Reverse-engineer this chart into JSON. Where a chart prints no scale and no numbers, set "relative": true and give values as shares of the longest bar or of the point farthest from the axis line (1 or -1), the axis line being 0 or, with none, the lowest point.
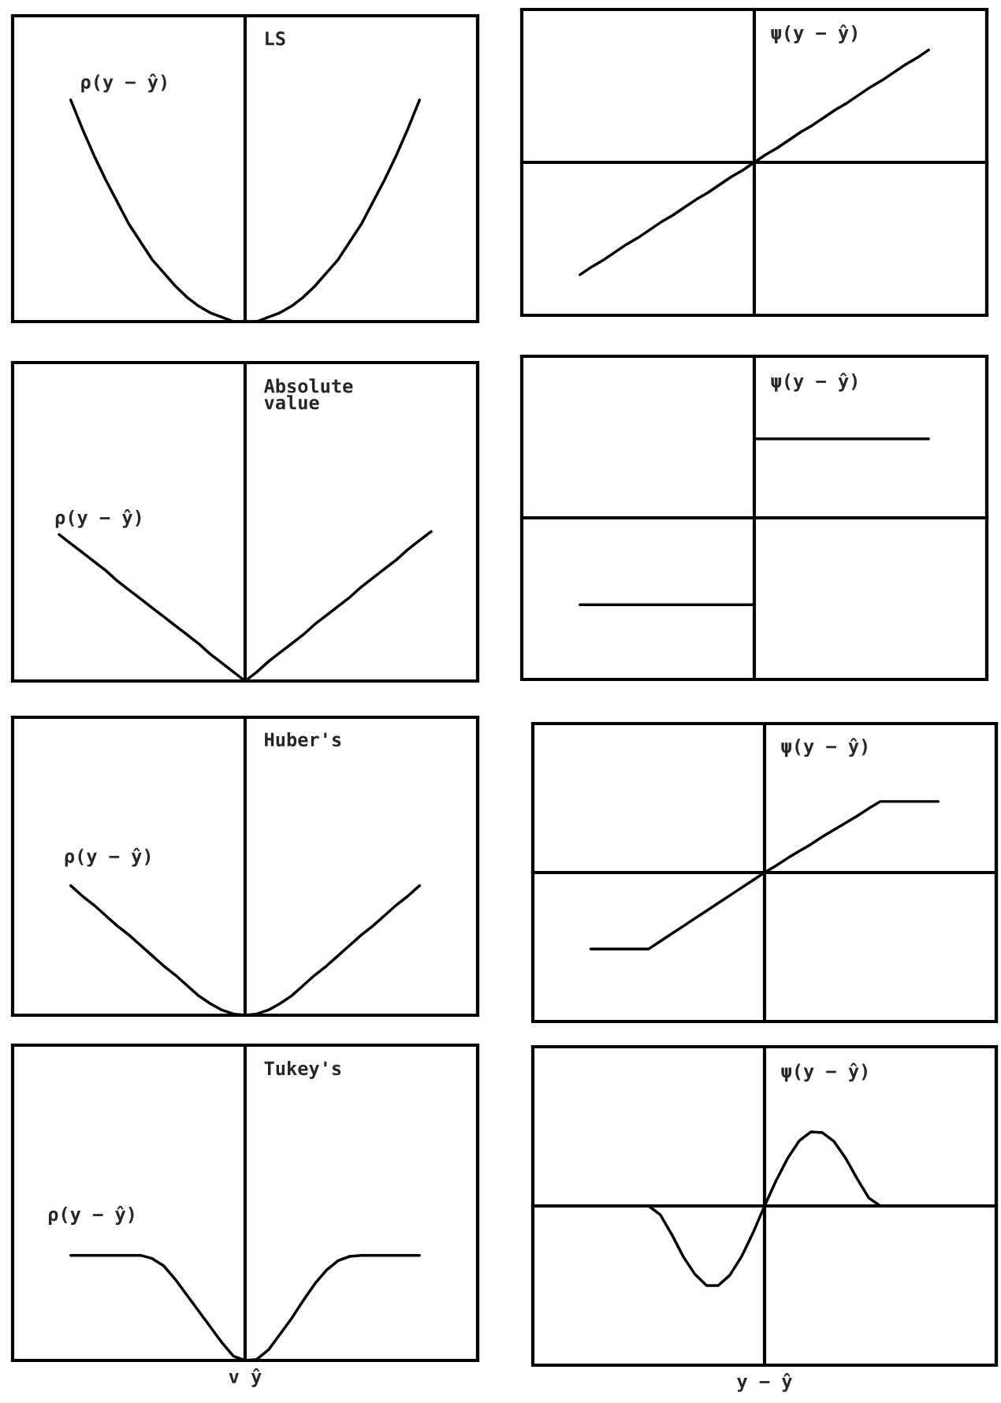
{
  "chart_data": [
    {
      "type": "line",
      "title": "LS",
      "ylabel": "ρ(y − ŷ)",
      "relative": true,
      "color": "#000000",
      "categories": [
        null,
        null,
        null,
        null,
        null,
        null,
        null,
        null,
        null,
        null,
        null,
        null,
        null,
        null,
        null,
        null,
        null,
        null,
        null,
        null,
        null,
        null,
        null,
        null,
        null,
        null,
        null,
        null,
        null,
        null,
        null,
        null,
        null,
        null,
        null,
        null,
        null,
        null,
        null,
        null,
        null
      ],
      "values": [
        null,
        null,
        null,
        null,
        null,
        1,
        0.87,
        0.75,
        0.64,
        0.54,
        0.44,
        0.36,
        0.28,
        0.22,
        0.16,
        0.11,
        0.07,
        0.04,
        0.02,
        0,
        0,
        0,
        0.02,
        0.04,
        0.07,
        0.11,
        0.16,
        0.22,
        0.28,
        0.36,
        0.44,
        0.54,
        0.64,
        0.75,
        0.87,
        1,
        null,
        null,
        null,
        null,
        null
      ]
    },
    {
      "type": "line",
      "ylabel": "ψ(y − ŷ)",
      "relative": true,
      "color": "#000000",
      "categories": [
        null,
        null,
        null,
        null,
        null,
        null,
        null,
        null,
        null,
        null,
        null,
        null,
        null,
        null,
        null,
        null,
        null,
        null,
        null,
        null,
        null,
        null,
        null,
        null,
        null,
        null,
        null,
        null,
        null,
        null,
        null,
        null,
        null,
        null,
        null,
        null,
        null,
        null,
        null,
        null,
        null
      ],
      "values": [
        null,
        null,
        null,
        null,
        null,
        -1,
        -0.93,
        -0.87,
        -0.8,
        -0.73,
        -0.67,
        -0.6,
        -0.53,
        -0.47,
        -0.4,
        -0.33,
        -0.27,
        -0.2,
        -0.13,
        -0.07,
        0,
        0.07,
        0.13,
        0.2,
        0.27,
        0.33,
        0.4,
        0.47,
        0.53,
        0.6,
        0.67,
        0.73,
        0.8,
        0.87,
        0.93,
        1,
        null,
        null,
        null,
        null,
        null
      ]
    },
    {
      "type": "line",
      "title": "Absolute\nvalue",
      "ylabel": "ρ(y − ŷ)",
      "relative": true,
      "color": "#000000",
      "categories": [
        null,
        null,
        null,
        null,
        null,
        null,
        null,
        null,
        null,
        null,
        null,
        null,
        null,
        null,
        null,
        null,
        null,
        null,
        null,
        null,
        null,
        null,
        null,
        null,
        null,
        null,
        null,
        null,
        null,
        null,
        null,
        null,
        null,
        null,
        null,
        null,
        null,
        null,
        null,
        null,
        null
      ],
      "values": [
        null,
        null,
        null,
        null,
        0.98,
        0.92,
        0.86,
        0.8,
        0.74,
        0.67,
        0.61,
        0.55,
        0.49,
        0.43,
        0.37,
        0.31,
        0.25,
        0.18,
        0.12,
        0.06,
        0,
        0.06,
        0.13,
        0.19,
        0.25,
        0.31,
        0.38,
        0.44,
        0.5,
        0.56,
        0.63,
        0.69,
        0.75,
        0.81,
        0.88,
        0.94,
        1,
        null,
        null,
        null,
        null
      ]
    },
    {
      "type": "step",
      "ylabel": "ψ(y − ŷ)",
      "relative": true,
      "color": "#000000",
      "categories": [
        null,
        null,
        null,
        null,
        null,
        null,
        null,
        null,
        null,
        null,
        null,
        null,
        null,
        null,
        null,
        null,
        null,
        null,
        null,
        null,
        null,
        null,
        null,
        null,
        null,
        null,
        null,
        null,
        null,
        null,
        null,
        null,
        null,
        null,
        null,
        null,
        null,
        null,
        null,
        null,
        null
      ],
      "values": [
        null,
        null,
        null,
        null,
        null,
        -1,
        -1,
        -1,
        -1,
        -1,
        -1,
        -1,
        -1,
        -1,
        -1,
        -1,
        -1,
        -1,
        -1,
        -1,
        0.91,
        0.91,
        0.91,
        0.91,
        0.91,
        0.91,
        0.91,
        0.91,
        0.91,
        0.91,
        0.91,
        0.91,
        0.91,
        0.91,
        0.91,
        0.91,
        null,
        null,
        null,
        null,
        null
      ]
    },
    {
      "type": "line",
      "title": "Huber's",
      "ylabel": "ρ(y − ŷ)",
      "relative": true,
      "color": "#000000",
      "categories": [
        null,
        null,
        null,
        null,
        null,
        null,
        null,
        null,
        null,
        null,
        null,
        null,
        null,
        null,
        null,
        null,
        null,
        null,
        null,
        null,
        null,
        null,
        null,
        null,
        null,
        null,
        null,
        null,
        null,
        null,
        null,
        null,
        null,
        null,
        null,
        null,
        null,
        null,
        null,
        null,
        null
      ],
      "values": [
        null,
        null,
        null,
        null,
        null,
        1,
        0.92,
        0.85,
        0.77,
        0.69,
        0.62,
        0.54,
        0.46,
        0.38,
        0.31,
        0.23,
        0.15,
        0.09,
        0.04,
        0.01,
        0,
        0.01,
        0.04,
        0.09,
        0.15,
        0.23,
        0.31,
        0.38,
        0.46,
        0.54,
        0.62,
        0.69,
        0.77,
        0.85,
        0.92,
        1,
        null,
        null,
        null,
        null,
        null
      ]
    },
    {
      "type": "line",
      "ylabel": "ψ(y − ŷ)",
      "relative": true,
      "color": "#000000",
      "categories": [
        null,
        null,
        null,
        null,
        null,
        null,
        null,
        null,
        null,
        null,
        null,
        null,
        null,
        null,
        null,
        null,
        null,
        null,
        null,
        null,
        null,
        null,
        null,
        null,
        null,
        null,
        null,
        null,
        null,
        null,
        null,
        null,
        null,
        null,
        null,
        null,
        null,
        null,
        null,
        null,
        null
      ],
      "values": [
        null,
        null,
        null,
        null,
        null,
        -1,
        -1,
        -1,
        -1,
        -1,
        -1,
        -0.9,
        -0.8,
        -0.7,
        -0.6,
        -0.5,
        -0.4,
        -0.3,
        -0.2,
        -0.1,
        0,
        0.09,
        0.19,
        0.28,
        0.37,
        0.47,
        0.56,
        0.65,
        0.74,
        0.84,
        0.93,
        0.93,
        0.93,
        0.93,
        0.93,
        0.93,
        null,
        null,
        null,
        null,
        null
      ]
    },
    {
      "type": "line",
      "title": "Tukey's",
      "ylabel": "ρ(y − ŷ)",
      "xlabel": "v ŷ",
      "relative": true,
      "color": "#000000",
      "categories": [
        null,
        null,
        null,
        null,
        null,
        null,
        null,
        null,
        null,
        null,
        null,
        null,
        null,
        null,
        null,
        null,
        null,
        null,
        null,
        null,
        null,
        null,
        null,
        null,
        null,
        null,
        null,
        null,
        null,
        null,
        null,
        null,
        null,
        null,
        null,
        null,
        null,
        null,
        null,
        null,
        null
      ],
      "values": [
        null,
        null,
        null,
        null,
        null,
        1,
        1,
        1,
        1,
        1,
        1,
        1,
        0.97,
        0.9,
        0.77,
        0.62,
        0.47,
        0.32,
        0.17,
        0.04,
        0,
        0.01,
        0.1,
        0.25,
        0.4,
        0.57,
        0.73,
        0.86,
        0.95,
        0.99,
        1,
        1,
        1,
        1,
        1,
        1,
        null,
        null,
        null,
        null,
        null
      ]
    },
    {
      "type": "line",
      "ylabel": "ψ(y − ŷ)",
      "xlabel": "y − ŷ",
      "relative": true,
      "color": "#000000",
      "categories": [
        null,
        null,
        null,
        null,
        null,
        null,
        null,
        null,
        null,
        null,
        null,
        null,
        null,
        null,
        null,
        null,
        null,
        null,
        null,
        null,
        null,
        null,
        null,
        null,
        null,
        null,
        null,
        null,
        null,
        null,
        null,
        null,
        null,
        null,
        null,
        null,
        null,
        null,
        null,
        null,
        null
      ],
      "values": [
        null,
        null,
        null,
        null,
        null,
        0,
        0,
        0,
        0,
        0,
        0,
        -0.11,
        -0.36,
        -0.64,
        -0.86,
        -1,
        -1,
        -0.87,
        -0.64,
        -0.34,
        0,
        0.32,
        0.6,
        0.82,
        0.93,
        0.92,
        0.81,
        0.6,
        0.34,
        0.1,
        0,
        0,
        0,
        0,
        0,
        0,
        null,
        null,
        null,
        null,
        null
      ]
    }
  ]
}
